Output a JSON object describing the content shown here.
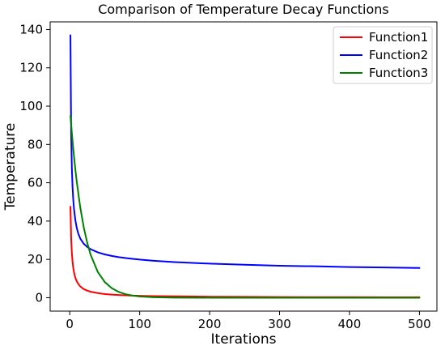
{
  "chart_data": {
    "type": "line",
    "title": "Comparison of Temperature Decay Functions",
    "xlabel": "Iterations",
    "ylabel": "Temperature",
    "xlim": [
      -28,
      525
    ],
    "ylim": [
      -7,
      144
    ],
    "xticks": [
      0,
      100,
      200,
      300,
      400,
      500
    ],
    "yticks": [
      0,
      20,
      40,
      60,
      80,
      100,
      120,
      140
    ],
    "grid": false,
    "legend_position": "top-right",
    "series": [
      {
        "name": "Function1",
        "color": "#ff0000",
        "x": [
          1,
          2,
          3,
          4,
          5,
          6,
          8,
          10,
          12,
          15,
          20,
          25,
          30,
          40,
          50,
          60,
          70,
          80,
          90,
          100,
          120,
          150,
          200,
          250,
          300,
          350,
          400,
          450,
          500
        ],
        "y": [
          47.5,
          31.5,
          23.5,
          18.8,
          15.6,
          13.4,
          10.4,
          8.6,
          7.3,
          5.9,
          4.5,
          3.7,
          3.1,
          2.4,
          1.9,
          1.6,
          1.4,
          1.25,
          1.1,
          1.0,
          0.85,
          0.7,
          0.53,
          0.43,
          0.36,
          0.31,
          0.27,
          0.24,
          0.22
        ]
      },
      {
        "name": "Function2",
        "color": "#0000ff",
        "x": [
          1,
          2,
          3,
          4,
          5,
          6,
          8,
          10,
          12,
          15,
          20,
          25,
          30,
          40,
          50,
          60,
          70,
          80,
          90,
          100,
          120,
          150,
          200,
          250,
          300,
          350,
          400,
          450,
          500
        ],
        "y": [
          137,
          86.5,
          67.9,
          57.8,
          51.3,
          46.7,
          40.5,
          36.5,
          33.7,
          30.9,
          28.2,
          26.5,
          25.3,
          23.7,
          22.6,
          21.8,
          21.2,
          20.7,
          20.3,
          19.9,
          19.3,
          18.6,
          17.8,
          17.2,
          16.7,
          16.4,
          16.0,
          15.8,
          15.5
        ]
      },
      {
        "name": "Function3",
        "color": "#008000",
        "x": [
          1,
          2,
          4,
          6,
          8,
          10,
          15,
          20,
          25,
          30,
          40,
          50,
          60,
          70,
          80,
          90,
          100,
          120,
          150,
          200,
          250,
          300,
          350,
          400,
          450,
          500
        ],
        "y": [
          95,
          90.4,
          81.8,
          74.0,
          67.0,
          60.6,
          47.2,
          36.8,
          28.6,
          22.3,
          13.5,
          8.2,
          5.0,
          3.0,
          1.8,
          1.1,
          0.67,
          0.25,
          0.05,
          0.0,
          0.0,
          0.0,
          0.0,
          0.0,
          0.0,
          0.0
        ]
      }
    ]
  }
}
